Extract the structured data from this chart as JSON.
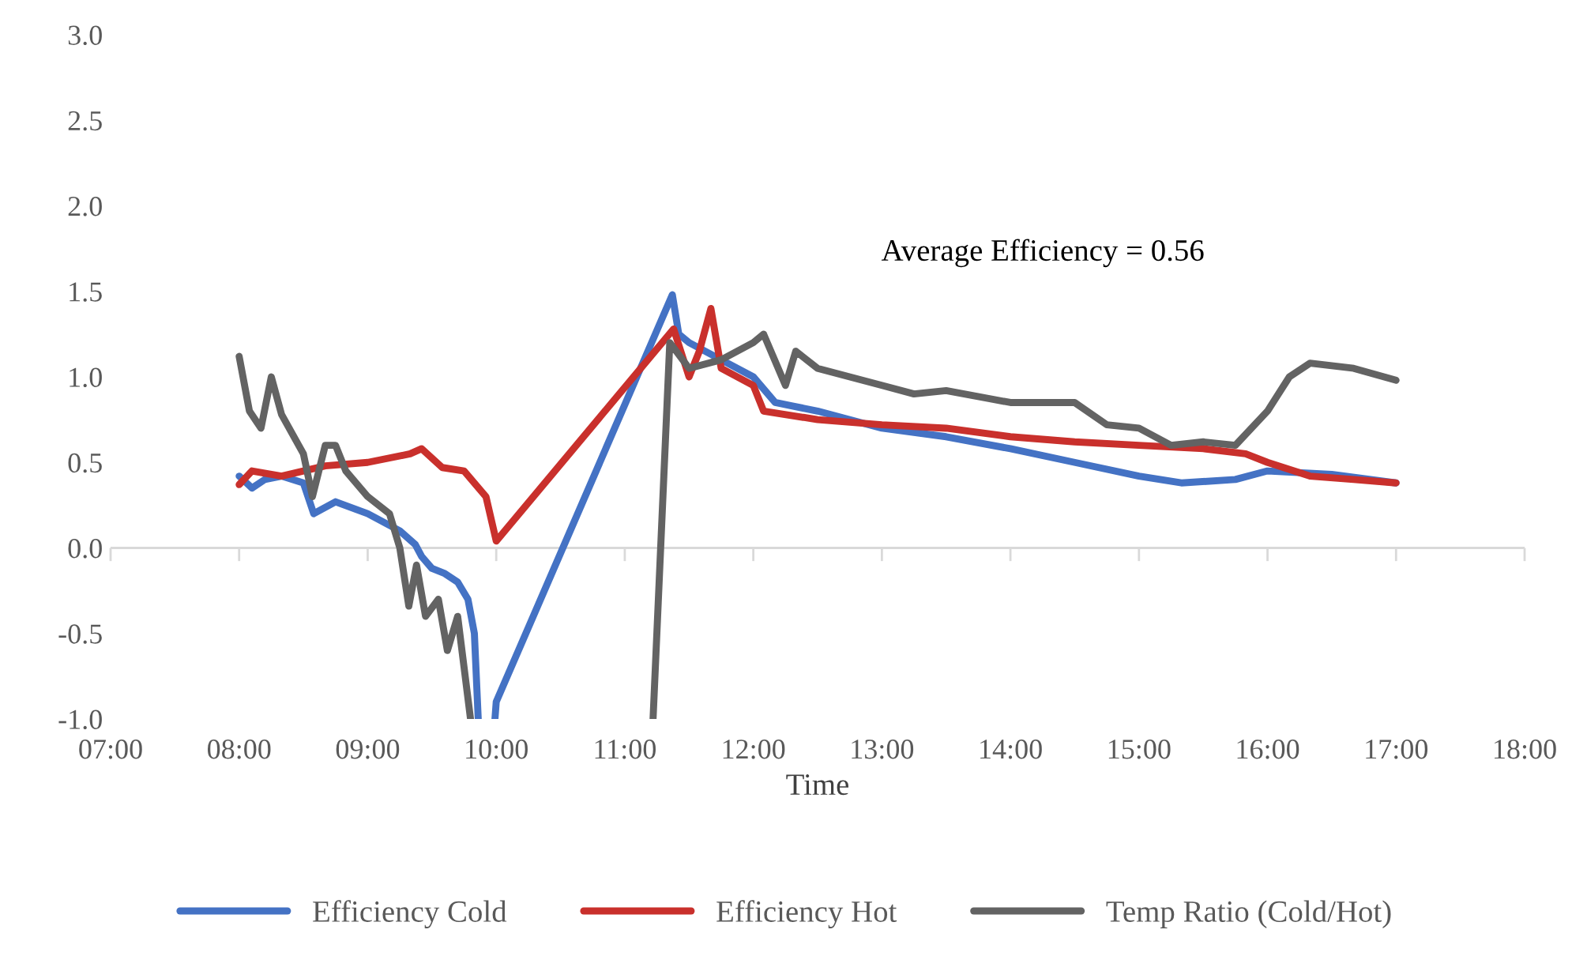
{
  "chart_data": {
    "type": "line",
    "xlabel": "Time",
    "annotations": [
      "Average Efficiency = 0.56"
    ],
    "legend": "bottom",
    "grid": false,
    "ref_lines": [
      {
        "axis": "y",
        "value": 0,
        "color": "#d9d9d9"
      }
    ],
    "marker": "none",
    "line_style": "solid",
    "xlim": [
      7,
      18
    ],
    "xticks": [
      {
        "value": 7,
        "label": "07:00"
      },
      {
        "value": 8,
        "label": "08:00"
      },
      {
        "value": 9,
        "label": "09:00"
      },
      {
        "value": 10,
        "label": "10:00"
      },
      {
        "value": 11,
        "label": "11:00"
      },
      {
        "value": 12,
        "label": "12:00"
      },
      {
        "value": 13,
        "label": "13:00"
      },
      {
        "value": 14,
        "label": "14:00"
      },
      {
        "value": 15,
        "label": "15:00"
      },
      {
        "value": 16,
        "label": "16:00"
      },
      {
        "value": 17,
        "label": "17:00"
      },
      {
        "value": 18,
        "label": "18:00"
      }
    ],
    "ylim": [
      -1,
      3
    ],
    "yticks": [
      {
        "value": -1,
        "label": "-1.0"
      },
      {
        "value": -0.5,
        "label": "-0.5"
      },
      {
        "value": 0,
        "label": "0.0"
      },
      {
        "value": 0.5,
        "label": "0.5"
      },
      {
        "value": 1,
        "label": "1.0"
      },
      {
        "value": 1.5,
        "label": "1.5"
      },
      {
        "value": 2,
        "label": "2.0"
      },
      {
        "value": 2.5,
        "label": "2.5"
      },
      {
        "value": 3,
        "label": "3.0"
      }
    ],
    "series": [
      {
        "name": "Efficiency Cold",
        "color": "#4472c4",
        "x": [
          8.0,
          8.1,
          8.2,
          8.33,
          8.5,
          8.58,
          8.75,
          9.0,
          9.25,
          9.37,
          9.42,
          9.5,
          9.6,
          9.7,
          9.78,
          9.83,
          9.86,
          9.9,
          9.99,
          10.0,
          11.37,
          11.42,
          11.5,
          11.75,
          12.0,
          12.17,
          12.5,
          13.0,
          13.5,
          14.0,
          14.5,
          15.0,
          15.33,
          15.75,
          16.0,
          16.5,
          17.0
        ],
        "values": [
          0.42,
          0.35,
          0.4,
          0.42,
          0.38,
          0.2,
          0.27,
          0.2,
          0.1,
          0.02,
          -0.05,
          -0.12,
          -0.15,
          -0.2,
          -0.3,
          -0.5,
          -1.0,
          null,
          -1.0,
          -0.9,
          1.48,
          1.25,
          1.2,
          1.1,
          1.0,
          0.85,
          0.8,
          0.7,
          0.65,
          0.58,
          0.5,
          0.42,
          0.38,
          0.4,
          0.45,
          0.43,
          0.38
        ]
      },
      {
        "name": "Efficiency Hot",
        "color": "#c9302c",
        "x": [
          8.0,
          8.1,
          8.33,
          8.67,
          9.0,
          9.33,
          9.42,
          9.58,
          9.75,
          9.92,
          10.0,
          11.38,
          11.5,
          11.58,
          11.67,
          11.75,
          12.0,
          12.08,
          12.5,
          13.0,
          13.5,
          14.0,
          14.5,
          15.0,
          15.5,
          15.83,
          16.0,
          16.33,
          16.67,
          17.0
        ],
        "values": [
          0.37,
          0.45,
          0.42,
          0.48,
          0.5,
          0.55,
          0.58,
          0.47,
          0.45,
          0.3,
          0.04,
          1.28,
          1.0,
          1.15,
          1.4,
          1.05,
          0.95,
          0.8,
          0.75,
          0.72,
          0.7,
          0.65,
          0.62,
          0.6,
          0.58,
          0.55,
          0.5,
          0.42,
          0.4,
          0.38
        ]
      },
      {
        "name": "Temp Ratio (Cold/Hot)",
        "color": "#636363",
        "x": [
          8.0,
          8.08,
          8.17,
          8.25,
          8.33,
          8.5,
          8.57,
          8.67,
          8.75,
          8.83,
          9.0,
          9.17,
          9.25,
          9.32,
          9.38,
          9.45,
          9.55,
          9.62,
          9.7,
          9.75,
          9.8,
          10.5,
          11.22,
          11.35,
          11.5,
          11.75,
          12.0,
          12.08,
          12.25,
          12.33,
          12.5,
          12.75,
          13.0,
          13.25,
          13.5,
          14.0,
          14.5,
          14.75,
          15.0,
          15.25,
          15.5,
          15.75,
          16.0,
          16.17,
          16.33,
          16.67,
          17.0
        ],
        "values": [
          1.12,
          0.8,
          0.7,
          1.0,
          0.78,
          0.55,
          0.3,
          0.6,
          0.6,
          0.45,
          0.3,
          0.2,
          0.0,
          -0.34,
          -0.1,
          -0.4,
          -0.3,
          -0.6,
          -0.4,
          -0.7,
          -1.0,
          null,
          -1.0,
          1.2,
          1.05,
          1.1,
          1.2,
          1.25,
          0.95,
          1.15,
          1.05,
          1.0,
          0.95,
          0.9,
          0.92,
          0.85,
          0.85,
          0.72,
          0.7,
          0.6,
          0.62,
          0.6,
          0.8,
          1.0,
          1.08,
          1.05,
          0.98
        ]
      }
    ]
  }
}
